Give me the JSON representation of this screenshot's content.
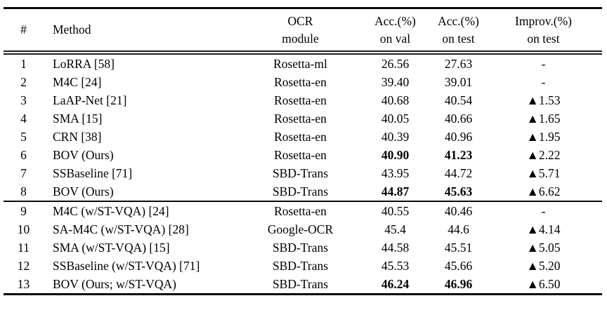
{
  "table": {
    "columns": {
      "num": "#",
      "method": "Method",
      "ocr_line1": "OCR",
      "ocr_line2": "module",
      "val_line1": "Acc.(%)",
      "val_line2": "on val",
      "test_line1": "Acc.(%)",
      "test_line2": "on test",
      "improv_line1": "Improv.(%)",
      "improv_line2": "on test"
    },
    "rows": [
      {
        "num": "1",
        "method": "LoRRA [58]",
        "ocr": "Rosetta-ml",
        "val": "26.56",
        "test": "27.63",
        "improv": "-",
        "bold": false,
        "group": 1
      },
      {
        "num": "2",
        "method": "M4C [24]",
        "ocr": "Rosetta-en",
        "val": "39.40",
        "test": "39.01",
        "improv": "-",
        "bold": false,
        "group": 1
      },
      {
        "num": "3",
        "method": "LaAP-Net [21]",
        "ocr": "Rosetta-en",
        "val": "40.68",
        "test": "40.54",
        "improv": "▲1.53",
        "bold": false,
        "group": 1
      },
      {
        "num": "4",
        "method": "SMA [15]",
        "ocr": "Rosetta-en",
        "val": "40.05",
        "test": "40.66",
        "improv": "▲1.65",
        "bold": false,
        "group": 1
      },
      {
        "num": "5",
        "method": "CRN [38]",
        "ocr": "Rosetta-en",
        "val": "40.39",
        "test": "40.96",
        "improv": "▲1.95",
        "bold": false,
        "group": 1
      },
      {
        "num": "6",
        "method": "BOV (Ours)",
        "ocr": "Rosetta-en",
        "val": "40.90",
        "test": "41.23",
        "improv": "▲2.22",
        "bold": true,
        "group": 1
      },
      {
        "num": "7",
        "method": "SSBaseline [71]",
        "ocr": "SBD-Trans",
        "val": "43.95",
        "test": "44.72",
        "improv": "▲5.71",
        "bold": false,
        "group": 1
      },
      {
        "num": "8",
        "method": "BOV (Ours)",
        "ocr": "SBD-Trans",
        "val": "44.87",
        "test": "45.63",
        "improv": "▲6.62",
        "bold": true,
        "group": 1
      },
      {
        "num": "9",
        "method": "M4C (w/ST-VQA) [24]",
        "ocr": "Rosetta-en",
        "val": "40.55",
        "test": "40.46",
        "improv": "-",
        "bold": false,
        "group": 2
      },
      {
        "num": "10",
        "method": "SA-M4C (w/ST-VQA) [28]",
        "ocr": "Google-OCR",
        "val": "45.4",
        "test": "44.6",
        "improv": "▲4.14",
        "bold": false,
        "group": 2
      },
      {
        "num": "11",
        "method": "SMA (w/ST-VQA) [15]",
        "ocr": "SBD-Trans",
        "val": "44.58",
        "test": "45.51",
        "improv": "▲5.05",
        "bold": false,
        "group": 2
      },
      {
        "num": "12",
        "method": "SSBaseline (w/ST-VQA) [71]",
        "ocr": "SBD-Trans",
        "val": "45.53",
        "test": "45.66",
        "improv": "▲5.20",
        "bold": false,
        "group": 2
      },
      {
        "num": "13",
        "method": "BOV (Ours; w/ST-VQA)",
        "ocr": "SBD-Trans",
        "val": "46.24",
        "test": "46.96",
        "improv": "▲6.50",
        "bold": true,
        "group": 2
      }
    ]
  },
  "colors": {
    "text": "#000000",
    "rule": "#0b0b0b",
    "background": "#ffffff"
  }
}
